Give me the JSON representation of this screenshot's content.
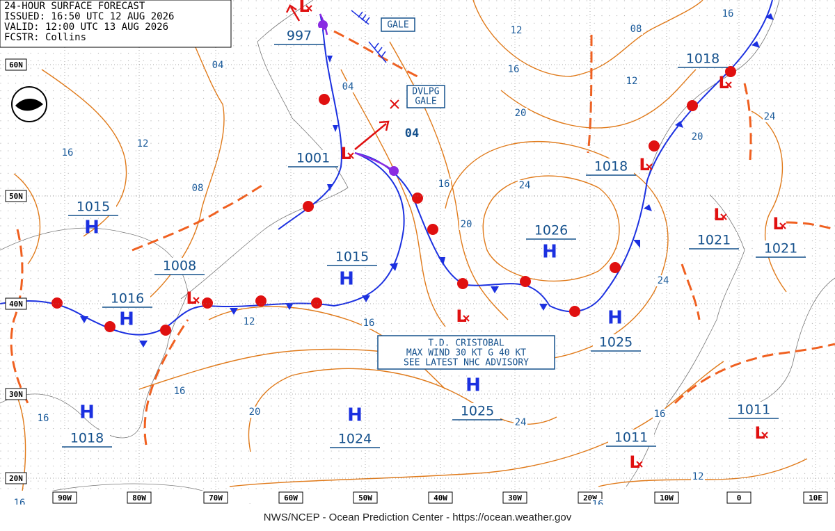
{
  "header": {
    "lines": [
      "24-HOUR SURFACE FORECAST",
      "ISSUED: 16:50 UTC 12 AUG 2026",
      "VALID: 12:00 UTC 13 AUG 2026",
      "FCSTR: Collins"
    ]
  },
  "latitudes": [
    "60N",
    "50N",
    "40N",
    "30N",
    "20N"
  ],
  "longitudes": [
    "90W",
    "80W",
    "70W",
    "60W",
    "50W",
    "40W",
    "30W",
    "20W",
    "10W",
    "0",
    "10E"
  ],
  "gale": {
    "text": "GALE"
  },
  "dvlpg": {
    "lines": [
      "DVLPG",
      "GALE"
    ]
  },
  "advisory": {
    "lines": [
      "T.D. CRISTOBAL",
      "MAX WIND 30 KT G 40 KT",
      "SEE LATEST NHC ADVISORY"
    ]
  },
  "systems": [
    {
      "symbol": "L",
      "pressure": "997"
    },
    {
      "symbol": "L",
      "pressure": "1001"
    },
    {
      "symbol": "H",
      "pressure": "1015"
    },
    {
      "pressure": "1008"
    },
    {
      "symbol": "H",
      "pressure": "1016"
    },
    {
      "symbol": "L"
    },
    {
      "symbol": "H",
      "pressure": "1015"
    },
    {
      "symbol": "H",
      "pressure": "1026"
    },
    {
      "symbol": "L",
      "pressure": "1018"
    },
    {
      "symbol": "L",
      "pressure": "1018"
    },
    {
      "symbol": "L",
      "pressure": "1021"
    },
    {
      "symbol": "L",
      "pressure": "1021"
    },
    {
      "symbol": "H",
      "pressure": "1025"
    },
    {
      "symbol": "L"
    },
    {
      "symbol": "H",
      "pressure": "1025"
    },
    {
      "symbol": "H",
      "pressure": "1024"
    },
    {
      "symbol": "H",
      "pressure": "1018"
    },
    {
      "symbol": "L",
      "pressure": "1011"
    },
    {
      "symbol": "L",
      "pressure": "1011"
    }
  ],
  "isobar_labels": [
    "04",
    "04",
    "04",
    "12",
    "08",
    "16",
    "16",
    "12",
    "20",
    "24",
    "20",
    "16",
    "12",
    "08",
    "16",
    "24",
    "20",
    "24",
    "12",
    "16",
    "16",
    "16",
    "20",
    "24",
    "16",
    "12",
    "16",
    "16"
  ],
  "footer": "NWS/NCEP - Ocean Prediction Center - https://ocean.weather.gov"
}
